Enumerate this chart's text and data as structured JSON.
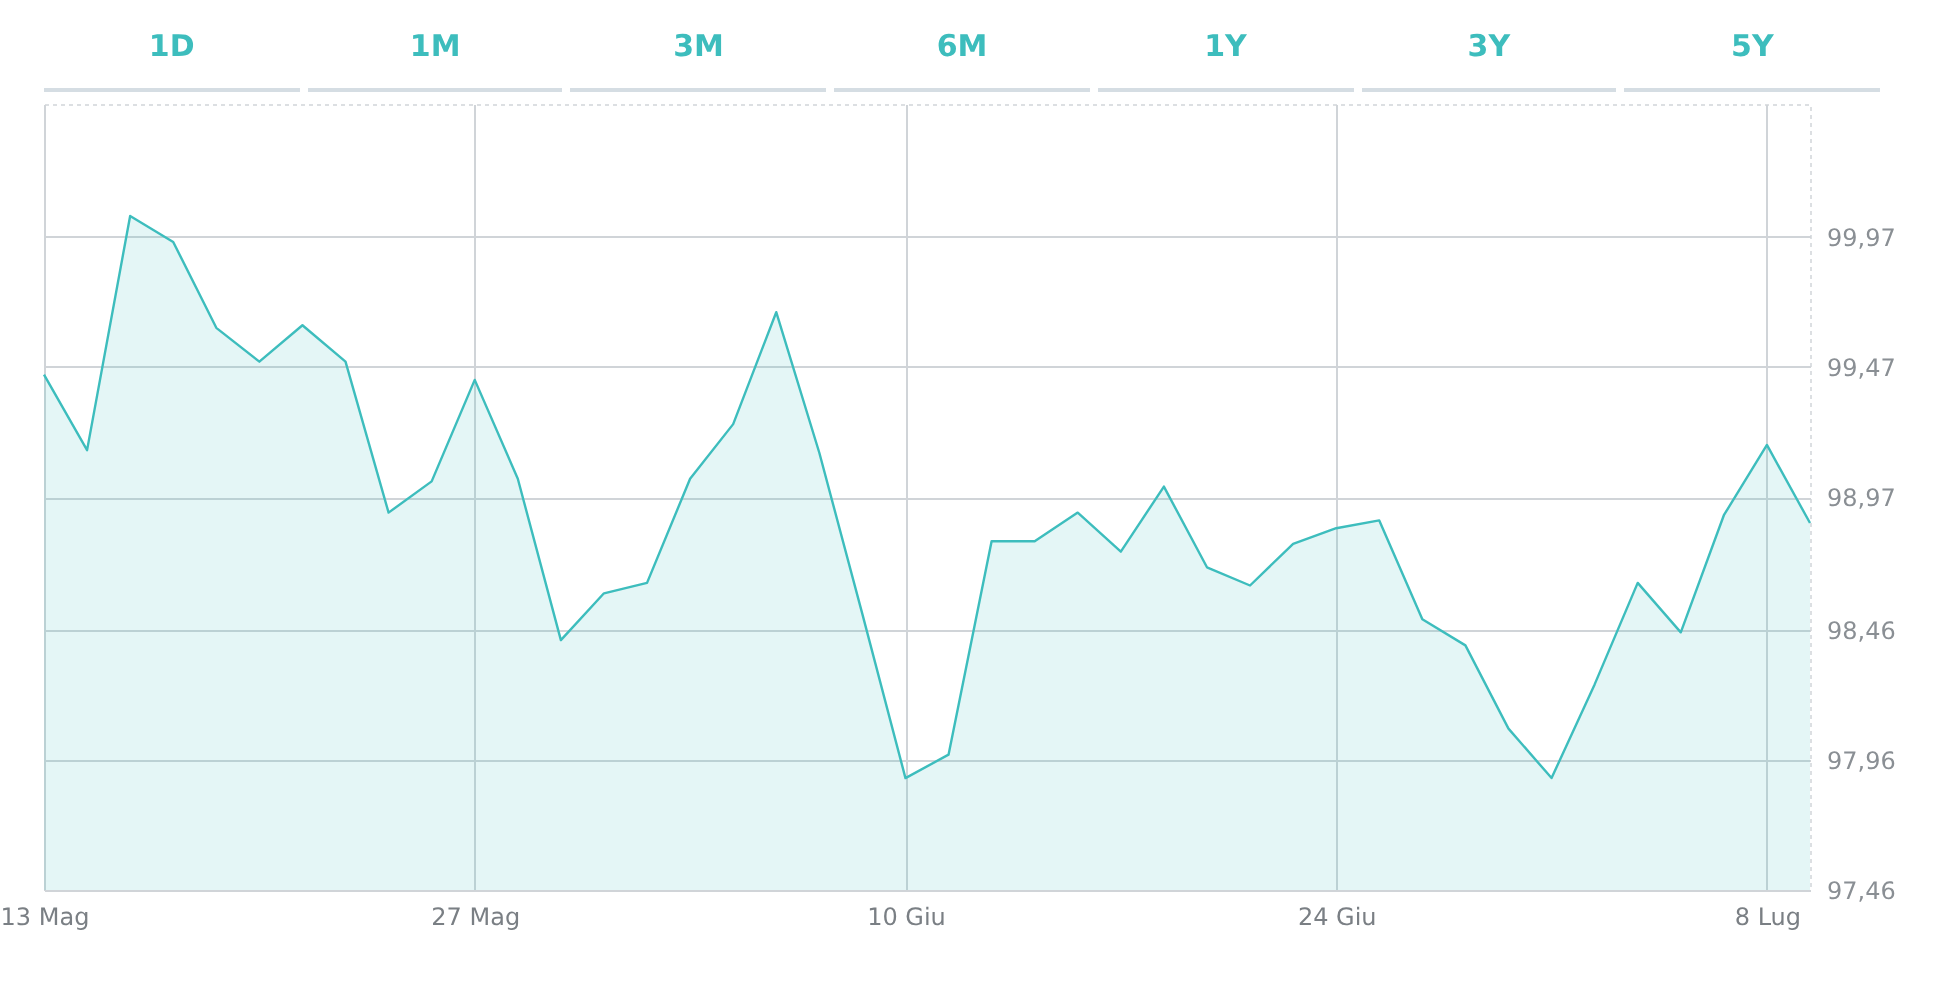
{
  "chart_data": {
    "type": "area",
    "annotations": [
      "1D",
      "1M",
      "3M",
      "6M",
      "1Y",
      "3Y",
      "5Y"
    ],
    "categories": [
      "13 Mag",
      null,
      null,
      null,
      null,
      null,
      null,
      null,
      null,
      null,
      "27 Mag",
      null,
      null,
      null,
      null,
      null,
      null,
      null,
      null,
      null,
      "10 Giu",
      null,
      null,
      null,
      null,
      null,
      null,
      null,
      null,
      null,
      "24 Giu",
      null,
      null,
      null,
      null,
      null,
      null,
      null,
      null,
      null,
      "8 Lug",
      null
    ],
    "series": [
      {
        "color": "#3dbdbd",
        "values": [
          99.44,
          99.15,
          100.05,
          99.95,
          99.62,
          99.49,
          99.63,
          99.49,
          98.91,
          99.03,
          99.42,
          99.04,
          98.42,
          98.6,
          98.64,
          99.04,
          99.25,
          99.68,
          99.14,
          98.52,
          97.89,
          97.98,
          98.8,
          98.8,
          98.91,
          98.76,
          99.01,
          98.7,
          98.63,
          98.79,
          98.85,
          98.88,
          98.5,
          98.4,
          98.08,
          97.89,
          98.25,
          98.64,
          98.45,
          98.9,
          99.17,
          98.87
        ]
      }
    ],
    "ylim": [
      97.46,
      100.48
    ],
    "yticks": [
      {
        "value": 97.46,
        "label": "97,46"
      },
      {
        "value": 97.96,
        "label": "97,96"
      },
      {
        "value": 98.46,
        "label": "98,46"
      },
      {
        "value": 98.97,
        "label": "98,97"
      },
      {
        "value": 99.47,
        "label": "99,47"
      },
      {
        "value": 99.97,
        "label": "99,97"
      }
    ],
    "grid": true
  }
}
